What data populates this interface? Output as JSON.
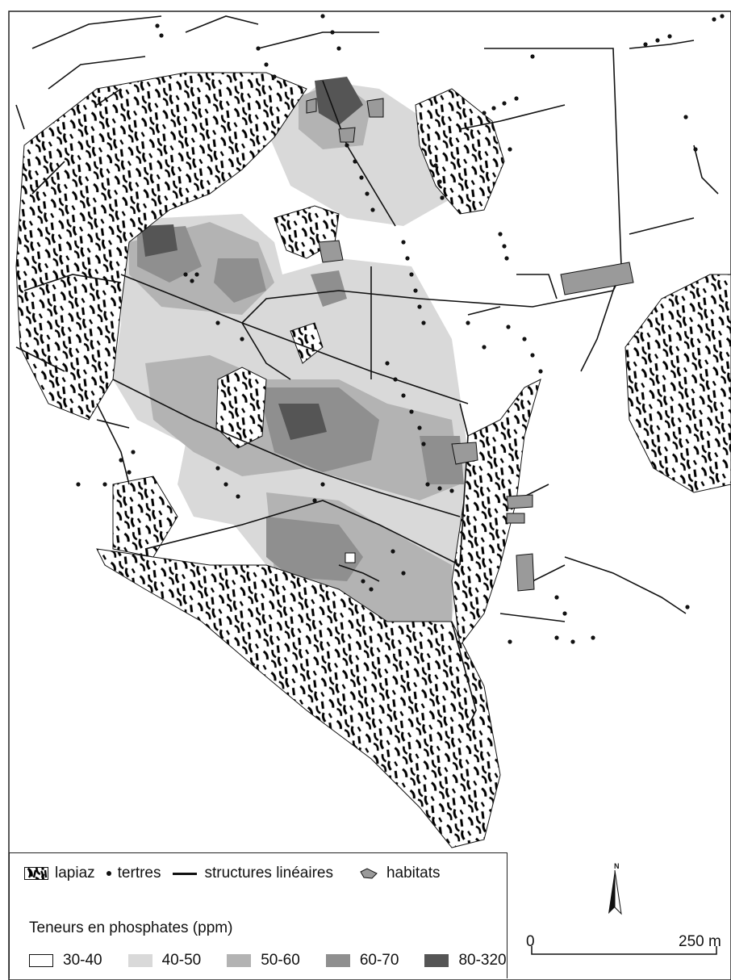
{
  "legend": {
    "lapiaz": "lapiaz",
    "tertres": "tertres",
    "structures": "structures linéaires",
    "habitats": "habitats",
    "phosphate_title": "Teneurs en phosphates (ppm)",
    "classes": [
      {
        "label": "30-40",
        "color": "#ffffff"
      },
      {
        "label": "40-50",
        "color": "#d9d9d9"
      },
      {
        "label": "50-60",
        "color": "#b3b3b3"
      },
      {
        "label": "60-70",
        "color": "#8f8f8f"
      },
      {
        "label": "80-320",
        "color": "#555555"
      }
    ],
    "habitat_color": "#9a9a9a"
  },
  "north_label": "N",
  "scale": {
    "start": "0",
    "end": "250 m"
  }
}
